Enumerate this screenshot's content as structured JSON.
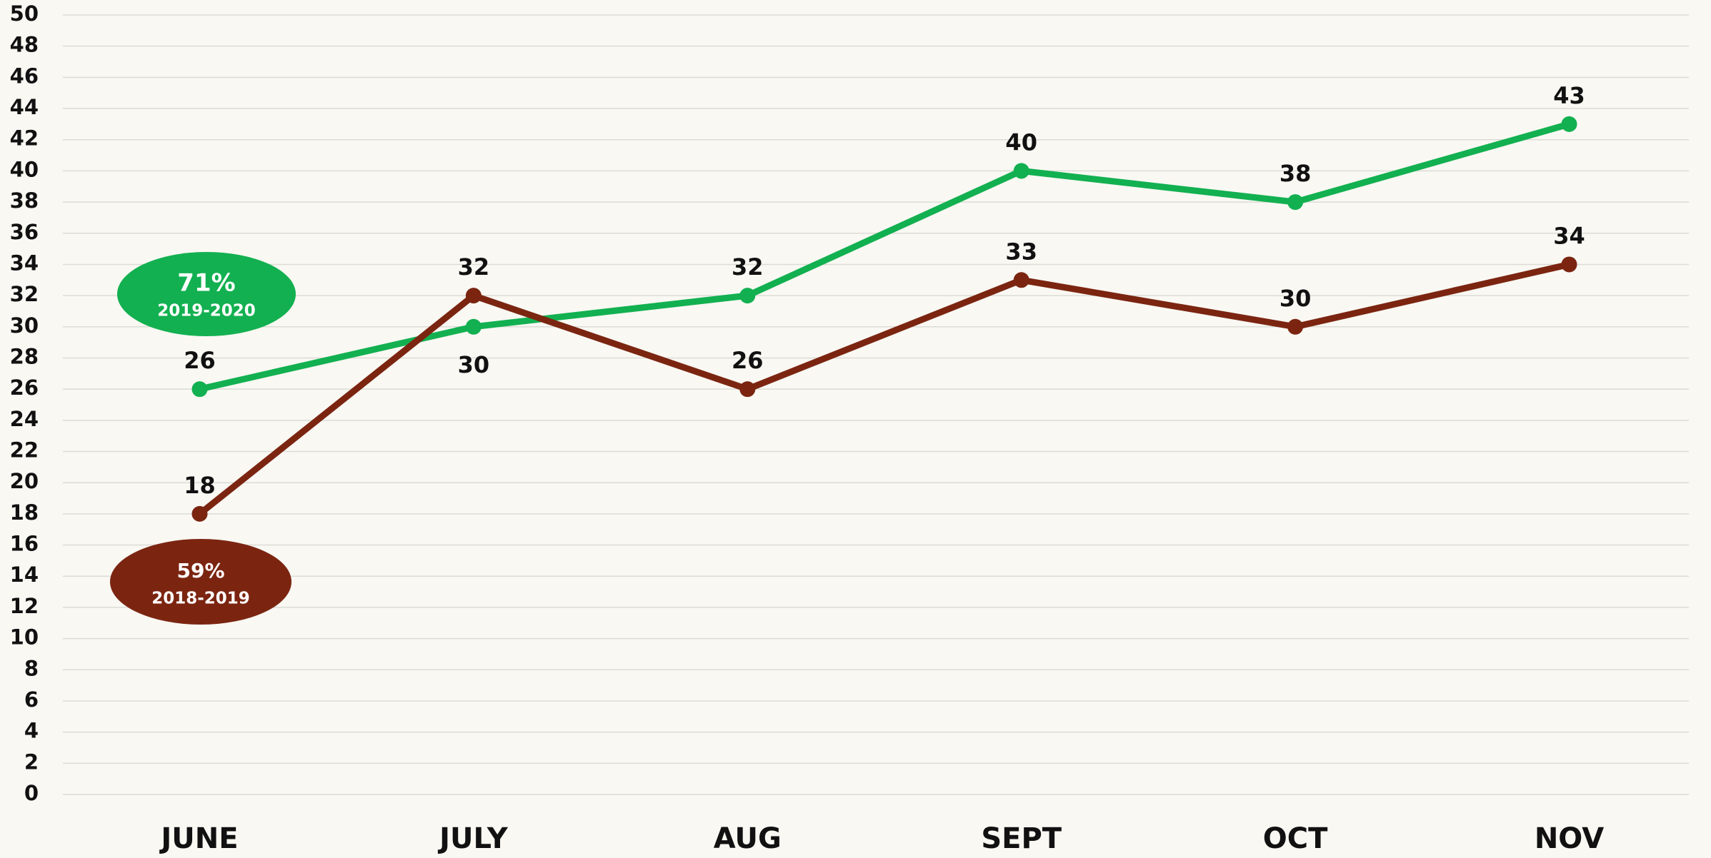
{
  "chart_data": {
    "type": "line",
    "categories": [
      "JUNE",
      "JULY",
      "AUG",
      "SEPT",
      "OCT",
      "NOV"
    ],
    "series": [
      {
        "name": "2019-2020",
        "annotation": "71%",
        "color": "#12b050",
        "values": [
          26,
          30,
          32,
          40,
          38,
          43
        ]
      },
      {
        "name": "2018-2019",
        "annotation": "59%",
        "color": "#7b2511",
        "values": [
          18,
          32,
          26,
          33,
          30,
          34
        ]
      }
    ],
    "ylim": [
      0,
      50
    ],
    "yticks": [
      0,
      2,
      4,
      6,
      8,
      10,
      12,
      14,
      16,
      18,
      20,
      22,
      24,
      26,
      28,
      30,
      32,
      34,
      36,
      38,
      40,
      42,
      44,
      46,
      48,
      50
    ],
    "grid": true
  }
}
